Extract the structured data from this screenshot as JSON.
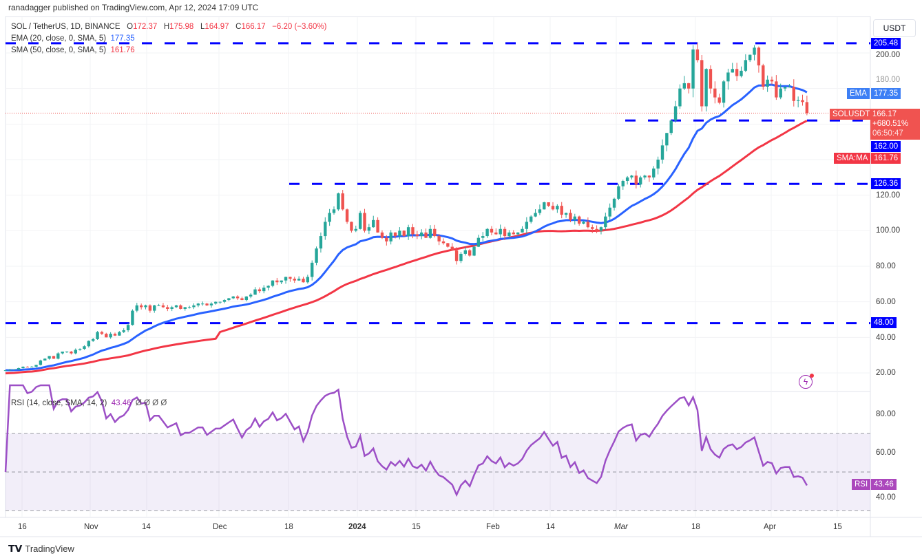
{
  "header": {
    "published": "ranadagger published on TradingView.com, Apr 12, 2024 17:09 UTC"
  },
  "legend": {
    "symbol": "SOL / TetherUS, 1D, BINANCE",
    "o_label": "O",
    "o": "172.37",
    "h_label": "H",
    "h": "175.98",
    "l_label": "L",
    "l": "164.97",
    "c_label": "C",
    "c": "166.17",
    "change": "−6.20 (−3.60%)",
    "ema_label": "EMA (20, close, 0, SMA, 5)",
    "ema_value": "177.35",
    "sma_label": "SMA (50, close, 0, SMA, 5)",
    "sma_value": "161.76",
    "rsi_label": "RSI (14, close, SMA, 14, 2)",
    "rsi_value": "43.46",
    "rsi_extra": "Ø Ø Ø Ø"
  },
  "currency_button": "USDT",
  "price_axis": [
    "200.00",
    "180.00",
    "120.00",
    "100.00",
    "80.00",
    "60.00",
    "40.00",
    "20.00"
  ],
  "rsi_axis": [
    "80.00",
    "60.00",
    "40.00"
  ],
  "time_axis": [
    "16",
    "Nov",
    "14",
    "Dec",
    "18",
    "2024",
    "15",
    "Feb",
    "14",
    "Mar",
    "18",
    "Apr",
    "15"
  ],
  "tags": {
    "r1": "205.48",
    "ema_name": "EMA",
    "ema": "177.35",
    "sym_name": "SOLUSDT",
    "last": "166.17",
    "pct": "+680.51%",
    "countdown": "06:50:47",
    "s1": "162.00",
    "sma_name": "SMA:MA",
    "sma": "161.76",
    "s2": "126.36",
    "s3": "48.00",
    "rsi_name": "RSI",
    "rsi": "43.46"
  },
  "footer": {
    "brand": "TradingView"
  },
  "colors": {
    "up": "#26a69a",
    "down": "#ef5350",
    "ema": "#2962ff",
    "sma": "#f23645",
    "level": "#0000ff",
    "rsi": "#9c27b0"
  },
  "chart_data": {
    "type": "candlestick",
    "title": "SOL / TetherUS, 1D, BINANCE",
    "start_date": "2023-10-12",
    "end_date": "2024-04-12",
    "closes": [
      21.5,
      21.8,
      21.9,
      22.7,
      23.5,
      23.3,
      23.5,
      24.5,
      27,
      28,
      29.5,
      28,
      31,
      32,
      32,
      31,
      33,
      33.5,
      35,
      38,
      39,
      43,
      42,
      40,
      42,
      41,
      43,
      44,
      47,
      55,
      58,
      57,
      58,
      55,
      58,
      58,
      57,
      56,
      57,
      58,
      56,
      57,
      57,
      58,
      59,
      59,
      58,
      59,
      60,
      60,
      61,
      62,
      63,
      62,
      61,
      63,
      64,
      67,
      66,
      68,
      69,
      72,
      71,
      72,
      74,
      73,
      72,
      73,
      71,
      74,
      82,
      90,
      97,
      105,
      110,
      112,
      121,
      112,
      105,
      100,
      101,
      110,
      100,
      102,
      106,
      99,
      96,
      94,
      99,
      97,
      100,
      97,
      102,
      98,
      97,
      99,
      96,
      101,
      97,
      94,
      93,
      91,
      89,
      83,
      87,
      89,
      86,
      91,
      96,
      97,
      101,
      99,
      98,
      101,
      97,
      99,
      98,
      99,
      101,
      105,
      108,
      110,
      112,
      116,
      114,
      112,
      114,
      109,
      110,
      106,
      108,
      104,
      105,
      102,
      101,
      100,
      102,
      108,
      113,
      118,
      125,
      128,
      130,
      131,
      126,
      130,
      131,
      130,
      135,
      140,
      148,
      155,
      162,
      170,
      180,
      183,
      180,
      202,
      196,
      170,
      191,
      180,
      175,
      172,
      184,
      189,
      191,
      187,
      190,
      196,
      199,
      203,
      193,
      181,
      185,
      184,
      175,
      180,
      181,
      181,
      173,
      173.5,
      172.4,
      166.17
    ],
    "last_ohlc": {
      "open": 172.37,
      "high": 175.98,
      "low": 164.97,
      "close": 166.17
    },
    "levels": [
      205.48,
      162.0,
      126.36,
      48.0
    ],
    "ema20_last": 177.35,
    "sma50_last": 161.76,
    "rsi_last": 43.46,
    "price_range": [
      10,
      215
    ],
    "rsi_range": [
      25,
      95
    ],
    "rsi_bands": [
      70,
      50,
      30
    ]
  }
}
